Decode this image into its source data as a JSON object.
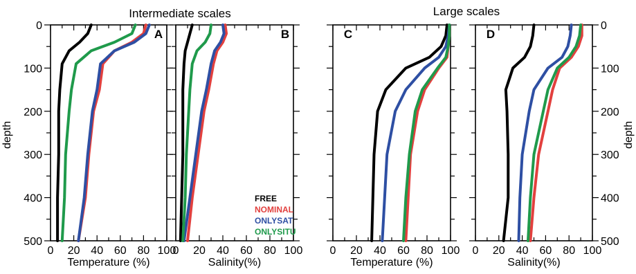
{
  "figure": {
    "title_left": "Intermediate scales",
    "title_right": "Large scales",
    "ylabel": "depth"
  },
  "legend": [
    {
      "name": "FREE",
      "color": "#000000"
    },
    {
      "name": "NOMINAL",
      "color": "#e2403e"
    },
    {
      "name": "ONLYSAT",
      "color": "#2e4fa3"
    },
    {
      "name": "ONLYSITU",
      "color": "#1f9a4b"
    }
  ],
  "chart_data": [
    {
      "type": "line",
      "panel": "A",
      "xlabel": "Temperature (%)",
      "ylabel": "depth",
      "xlim": [
        0,
        100
      ],
      "ylim": [
        500,
        0
      ],
      "xticks": [
        "0",
        "20",
        "40",
        "60",
        "80",
        "100"
      ],
      "yticks": [
        "0",
        "100",
        "200",
        "300",
        "400",
        "500"
      ],
      "series": [
        {
          "name": "FREE",
          "color": "#000000",
          "x": [
            35,
            32,
            25,
            16,
            10,
            8,
            7,
            7,
            6,
            6
          ],
          "y": [
            0,
            20,
            40,
            60,
            90,
            150,
            200,
            300,
            400,
            500
          ]
        },
        {
          "name": "NOMINAL",
          "color": "#e2403e",
          "x": [
            82,
            80,
            70,
            55,
            45,
            42,
            37,
            33,
            30,
            24
          ],
          "y": [
            0,
            20,
            40,
            60,
            90,
            150,
            200,
            300,
            400,
            500
          ]
        },
        {
          "name": "ONLYSAT",
          "color": "#2e4fa3",
          "x": [
            85,
            82,
            72,
            55,
            43,
            40,
            36,
            32,
            29,
            24
          ],
          "y": [
            0,
            20,
            40,
            60,
            90,
            150,
            200,
            300,
            400,
            500
          ]
        },
        {
          "name": "ONLYSITU",
          "color": "#1f9a4b",
          "x": [
            73,
            70,
            55,
            35,
            22,
            18,
            16,
            13,
            12,
            10
          ],
          "y": [
            0,
            20,
            40,
            60,
            90,
            150,
            200,
            300,
            400,
            500
          ]
        }
      ]
    },
    {
      "type": "line",
      "panel": "B",
      "xlabel": "Salinity(%)",
      "xlim": [
        0,
        100
      ],
      "ylim": [
        500,
        0
      ],
      "xticks": [
        "0",
        "20",
        "40",
        "60",
        "80",
        "100"
      ],
      "series": [
        {
          "name": "FREE",
          "color": "#000000",
          "x": [
            14,
            12,
            10,
            8,
            7,
            6,
            6,
            6,
            5,
            4
          ],
          "y": [
            0,
            20,
            40,
            60,
            90,
            150,
            200,
            300,
            400,
            500
          ]
        },
        {
          "name": "NOMINAL",
          "color": "#e2403e",
          "x": [
            42,
            43,
            40,
            35,
            32,
            28,
            24,
            19,
            14,
            10
          ],
          "y": [
            0,
            20,
            40,
            60,
            90,
            150,
            200,
            300,
            400,
            500
          ]
        },
        {
          "name": "ONLYSAT",
          "color": "#2e4fa3",
          "x": [
            40,
            41,
            38,
            33,
            30,
            26,
            22,
            17,
            12,
            7
          ],
          "y": [
            0,
            20,
            40,
            60,
            90,
            150,
            200,
            300,
            400,
            500
          ]
        },
        {
          "name": "ONLYSITU",
          "color": "#1f9a4b",
          "x": [
            30,
            29,
            25,
            18,
            14,
            12,
            11,
            9,
            8,
            6
          ],
          "y": [
            0,
            20,
            40,
            60,
            90,
            150,
            200,
            300,
            400,
            500
          ]
        }
      ]
    },
    {
      "type": "line",
      "panel": "C",
      "xlabel": "Temperature (%)",
      "xlim": [
        0,
        100
      ],
      "ylim": [
        500,
        0
      ],
      "xticks": [
        "0",
        "20",
        "40",
        "60",
        "80",
        "100"
      ],
      "series": [
        {
          "name": "FREE",
          "color": "#000000",
          "x": [
            97,
            96,
            92,
            82,
            62,
            45,
            38,
            35,
            34,
            33
          ],
          "y": [
            0,
            25,
            50,
            75,
            100,
            150,
            200,
            300,
            400,
            500
          ]
        },
        {
          "name": "NOMINAL",
          "color": "#e2403e",
          "x": [
            99,
            99,
            98,
            97,
            90,
            78,
            72,
            66,
            64,
            62
          ],
          "y": [
            0,
            25,
            50,
            75,
            100,
            150,
            200,
            300,
            400,
            500
          ]
        },
        {
          "name": "ONLYSAT",
          "color": "#2e4fa3",
          "x": [
            99,
            98,
            96,
            90,
            78,
            62,
            53,
            46,
            44,
            42
          ],
          "y": [
            0,
            25,
            50,
            75,
            100,
            150,
            200,
            300,
            400,
            500
          ]
        },
        {
          "name": "ONLYSITU",
          "color": "#1f9a4b",
          "x": [
            99,
            99,
            98,
            96,
            89,
            76,
            70,
            65,
            62,
            60
          ],
          "y": [
            0,
            25,
            50,
            75,
            100,
            150,
            200,
            300,
            400,
            500
          ]
        }
      ]
    },
    {
      "type": "line",
      "panel": "D",
      "xlabel": "Salinity(%)",
      "ylabel": "depth",
      "xlim": [
        0,
        100
      ],
      "ylim": [
        500,
        0
      ],
      "xticks": [
        "0",
        "20",
        "40",
        "60",
        "80",
        "100"
      ],
      "yticks": [
        "0",
        "100",
        "200",
        "300",
        "400",
        "500"
      ],
      "series": [
        {
          "name": "FREE",
          "color": "#000000",
          "x": [
            50,
            49,
            47,
            42,
            32,
            26,
            27,
            28,
            28,
            24
          ],
          "y": [
            0,
            25,
            50,
            75,
            100,
            150,
            200,
            300,
            400,
            500
          ]
        },
        {
          "name": "NOMINAL",
          "color": "#e2403e",
          "x": [
            91,
            91,
            88,
            82,
            72,
            66,
            62,
            54,
            50,
            47
          ],
          "y": [
            0,
            25,
            50,
            75,
            100,
            150,
            200,
            300,
            400,
            500
          ]
        },
        {
          "name": "ONLYSAT",
          "color": "#2e4fa3",
          "x": [
            82,
            81,
            79,
            74,
            62,
            50,
            46,
            40,
            38,
            37
          ],
          "y": [
            0,
            25,
            50,
            75,
            100,
            150,
            200,
            300,
            400,
            500
          ]
        },
        {
          "name": "ONLYSITU",
          "color": "#1f9a4b",
          "x": [
            90,
            89,
            86,
            80,
            70,
            62,
            58,
            50,
            47,
            45
          ],
          "y": [
            0,
            25,
            50,
            75,
            100,
            150,
            200,
            300,
            400,
            500
          ]
        }
      ]
    }
  ]
}
